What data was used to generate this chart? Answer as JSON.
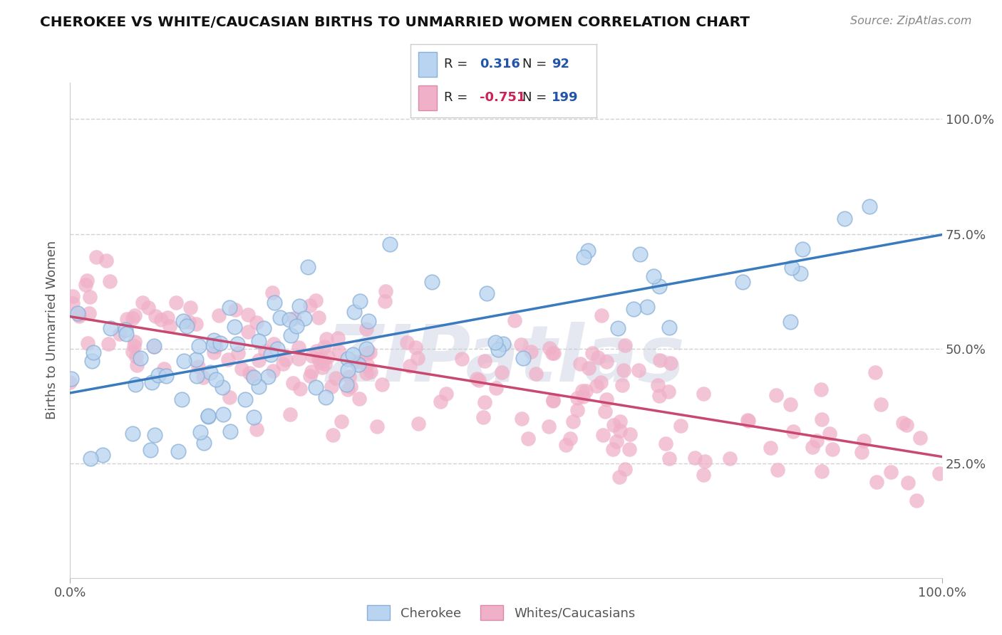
{
  "title": "CHEROKEE VS WHITE/CAUCASIAN BIRTHS TO UNMARRIED WOMEN CORRELATION CHART",
  "source": "Source: ZipAtlas.com",
  "ylabel": "Births to Unmarried Women",
  "cherokee_R": 0.316,
  "cherokee_N": 92,
  "white_R": -0.751,
  "white_N": 199,
  "cherokee_color": "#b8d4f0",
  "cherokee_edge": "#8ab0d8",
  "white_color": "#f0b0c8",
  "white_edge": "#d88aaa",
  "cherokee_line_color": "#3a7abf",
  "white_line_color": "#c84870",
  "background_color": "#ffffff",
  "grid_color": "#cccccc",
  "title_color": "#111111",
  "watermark_color": "#e5e8f0",
  "legend_box_color": "#ffffff",
  "legend_border_color": "#cccccc",
  "R_value_color": "#2255aa",
  "R_neg_color": "#cc2255",
  "N_value_color": "#2255aa",
  "source_color": "#888888",
  "tick_color": "#555555",
  "ylabel_color": "#555555",
  "cherokee_seed": 7,
  "white_seed": 13
}
